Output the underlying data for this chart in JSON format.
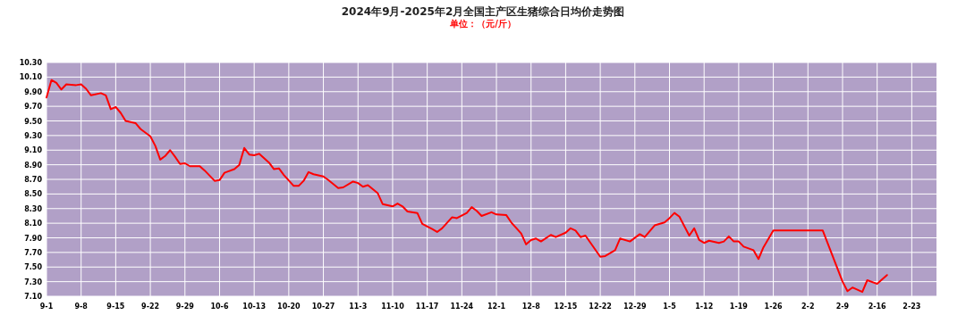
{
  "chart_data": {
    "type": "line",
    "title": "2024年9月-2025年2月全国主产区生猪综合日均价走势图",
    "subtitle": "单位：（元/斤）",
    "x": [
      "2024-09-01",
      "2024-09-02",
      "2024-09-03",
      "2024-09-04",
      "2024-09-05",
      "2024-09-07",
      "2024-09-08",
      "2024-09-09",
      "2024-09-10",
      "2024-09-12",
      "2024-09-13",
      "2024-09-14",
      "2024-09-15",
      "2024-09-16",
      "2024-09-17",
      "2024-09-19",
      "2024-09-20",
      "2024-09-22",
      "2024-09-23",
      "2024-09-24",
      "2024-09-25",
      "2024-09-26",
      "2024-09-27",
      "2024-09-28",
      "2024-09-29",
      "2024-09-30",
      "2024-10-02",
      "2024-10-03",
      "2024-10-05",
      "2024-10-06",
      "2024-10-07",
      "2024-10-09",
      "2024-10-10",
      "2024-10-11",
      "2024-10-12",
      "2024-10-13",
      "2024-10-14",
      "2024-10-16",
      "2024-10-17",
      "2024-10-18",
      "2024-10-19",
      "2024-10-21",
      "2024-10-22",
      "2024-10-23",
      "2024-10-24",
      "2024-10-25",
      "2024-10-27",
      "2024-10-28",
      "2024-10-30",
      "2024-10-31",
      "2024-11-02",
      "2024-11-03",
      "2024-11-04",
      "2024-11-05",
      "2024-11-07",
      "2024-11-08",
      "2024-11-10",
      "2024-11-11",
      "2024-11-12",
      "2024-11-13",
      "2024-11-15",
      "2024-11-16",
      "2024-11-18",
      "2024-11-19",
      "2024-11-20",
      "2024-11-22",
      "2024-11-23",
      "2024-11-25",
      "2024-11-26",
      "2024-11-27",
      "2024-11-28",
      "2024-11-30",
      "2024-12-01",
      "2024-12-03",
      "2024-12-04",
      "2024-12-06",
      "2024-12-07",
      "2024-12-08",
      "2024-12-09",
      "2024-12-10",
      "2024-12-12",
      "2024-12-13",
      "2024-12-15",
      "2024-12-16",
      "2024-12-17",
      "2024-12-18",
      "2024-12-19",
      "2024-12-22",
      "2024-12-23",
      "2024-12-25",
      "2024-12-26",
      "2024-12-28",
      "2024-12-30",
      "2024-12-31",
      "2025-01-02",
      "2025-01-04",
      "2025-01-05",
      "2025-01-06",
      "2025-01-07",
      "2025-01-09",
      "2025-01-10",
      "2025-01-11",
      "2025-01-12",
      "2025-01-13",
      "2025-01-15",
      "2025-01-16",
      "2025-01-17",
      "2025-01-18",
      "2025-01-19",
      "2025-01-20",
      "2025-01-22",
      "2025-01-23",
      "2025-01-24",
      "2025-01-26",
      "2025-02-05",
      "2025-02-09",
      "2025-02-10",
      "2025-02-11",
      "2025-02-13",
      "2025-02-14",
      "2025-02-16",
      "2025-02-18"
    ],
    "values": [
      9.82,
      10.06,
      10.02,
      9.93,
      10.0,
      9.99,
      10.0,
      9.94,
      9.85,
      9.88,
      9.85,
      9.66,
      9.69,
      9.61,
      9.5,
      9.47,
      9.39,
      9.29,
      9.16,
      8.97,
      9.02,
      9.1,
      9.01,
      8.91,
      8.92,
      8.88,
      8.88,
      8.82,
      8.68,
      8.69,
      8.79,
      8.84,
      8.9,
      9.13,
      9.04,
      9.03,
      9.05,
      8.93,
      8.84,
      8.85,
      8.76,
      8.61,
      8.61,
      8.68,
      8.8,
      8.77,
      8.74,
      8.69,
      8.58,
      8.59,
      8.67,
      8.65,
      8.6,
      8.62,
      8.51,
      8.36,
      8.33,
      8.37,
      8.33,
      8.26,
      8.24,
      8.09,
      8.02,
      7.98,
      8.03,
      8.18,
      8.17,
      8.24,
      8.32,
      8.27,
      8.2,
      8.25,
      8.22,
      8.21,
      8.11,
      7.96,
      7.81,
      7.87,
      7.89,
      7.85,
      7.94,
      7.91,
      7.97,
      8.03,
      8.0,
      7.91,
      7.93,
      7.64,
      7.65,
      7.73,
      7.89,
      7.85,
      7.95,
      7.91,
      8.07,
      8.11,
      8.17,
      8.24,
      8.19,
      7.93,
      8.03,
      7.87,
      7.83,
      7.86,
      7.83,
      7.85,
      7.92,
      7.85,
      7.85,
      7.78,
      7.73,
      7.61,
      7.77,
      8.0,
      8.0,
      7.3,
      7.17,
      7.22,
      7.16,
      7.32,
      7.27,
      7.39
    ],
    "color": "#ff0000",
    "xlim": [
      "2024-09-01",
      "2025-02-28"
    ],
    "ylim": [
      7.1,
      10.3
    ],
    "xticks": [
      {
        "value": "2024-09-01",
        "label": "9-1"
      },
      {
        "value": "2024-09-08",
        "label": "9-8"
      },
      {
        "value": "2024-09-15",
        "label": "9-15"
      },
      {
        "value": "2024-09-22",
        "label": "9-22"
      },
      {
        "value": "2024-09-29",
        "label": "9-29"
      },
      {
        "value": "2024-10-06",
        "label": "10-6"
      },
      {
        "value": "2024-10-13",
        "label": "10-13"
      },
      {
        "value": "2024-10-20",
        "label": "10-20"
      },
      {
        "value": "2024-10-27",
        "label": "10-27"
      },
      {
        "value": "2024-11-03",
        "label": "11-3"
      },
      {
        "value": "2024-11-10",
        "label": "11-10"
      },
      {
        "value": "2024-11-17",
        "label": "11-17"
      },
      {
        "value": "2024-11-24",
        "label": "11-24"
      },
      {
        "value": "2024-12-01",
        "label": "12-1"
      },
      {
        "value": "2024-12-08",
        "label": "12-8"
      },
      {
        "value": "2024-12-15",
        "label": "12-15"
      },
      {
        "value": "2024-12-22",
        "label": "12-22"
      },
      {
        "value": "2024-12-29",
        "label": "12-29"
      },
      {
        "value": "2025-01-05",
        "label": "1-5"
      },
      {
        "value": "2025-01-12",
        "label": "1-12"
      },
      {
        "value": "2025-01-19",
        "label": "1-19"
      },
      {
        "value": "2025-01-26",
        "label": "1-26"
      },
      {
        "value": "2025-02-02",
        "label": "2-2"
      },
      {
        "value": "2025-02-09",
        "label": "2-9"
      },
      {
        "value": "2025-02-16",
        "label": "2-16"
      },
      {
        "value": "2025-02-23",
        "label": "2-23"
      }
    ],
    "yticks": [
      {
        "value": 7.1,
        "label": "7.10"
      },
      {
        "value": 7.3,
        "label": "7.30"
      },
      {
        "value": 7.5,
        "label": "7.50"
      },
      {
        "value": 7.7,
        "label": "7.70"
      },
      {
        "value": 7.9,
        "label": "7.90"
      },
      {
        "value": 8.1,
        "label": "8.10"
      },
      {
        "value": 8.3,
        "label": "8.30"
      },
      {
        "value": 8.5,
        "label": "8.50"
      },
      {
        "value": 8.7,
        "label": "8.70"
      },
      {
        "value": 8.9,
        "label": "8.90"
      },
      {
        "value": 9.1,
        "label": "9.10"
      },
      {
        "value": 9.3,
        "label": "9.30"
      },
      {
        "value": 9.5,
        "label": "9.50"
      },
      {
        "value": 9.7,
        "label": "9.70"
      },
      {
        "value": 9.9,
        "label": "9.90"
      },
      {
        "value": 10.1,
        "label": "10.10"
      },
      {
        "value": 10.3,
        "label": "10.30"
      }
    ],
    "grid": true
  }
}
